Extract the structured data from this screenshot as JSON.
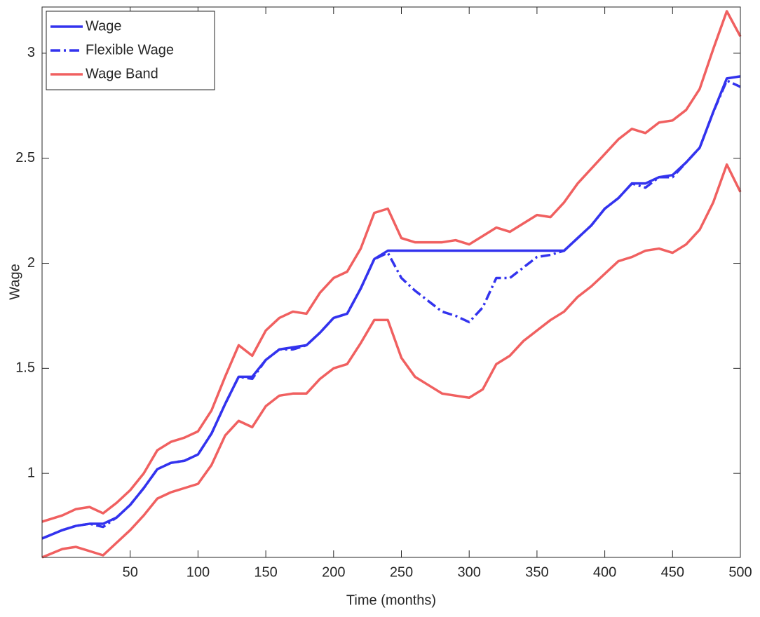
{
  "chart_data": {
    "type": "line",
    "x_label": "Time (months)",
    "y_label": "Wage",
    "x": [
      -15,
      0,
      10,
      20,
      30,
      40,
      50,
      60,
      70,
      80,
      90,
      100,
      110,
      120,
      130,
      140,
      150,
      160,
      170,
      180,
      190,
      200,
      210,
      220,
      230,
      240,
      250,
      260,
      270,
      280,
      290,
      300,
      310,
      320,
      330,
      340,
      350,
      360,
      370,
      380,
      390,
      400,
      410,
      420,
      430,
      440,
      450,
      460,
      470,
      480,
      490,
      500
    ],
    "series": [
      {
        "name": "Wage",
        "color": "#3333ee",
        "dash": "solid",
        "values": [
          0.69,
          0.73,
          0.75,
          0.76,
          0.76,
          0.79,
          0.85,
          0.93,
          1.02,
          1.05,
          1.06,
          1.09,
          1.19,
          1.33,
          1.46,
          1.46,
          1.54,
          1.59,
          1.6,
          1.61,
          1.67,
          1.74,
          1.76,
          1.88,
          2.02,
          2.06,
          2.06,
          2.06,
          2.06,
          2.06,
          2.06,
          2.06,
          2.06,
          2.06,
          2.06,
          2.06,
          2.06,
          2.06,
          2.06,
          2.12,
          2.18,
          2.26,
          2.31,
          2.38,
          2.38,
          2.41,
          2.42,
          2.48,
          2.55,
          2.72,
          2.88,
          2.89
        ]
      },
      {
        "name": "Flexible Wage",
        "color": "#3333ee",
        "dash": "dash-dot",
        "values": [
          0.69,
          0.73,
          0.75,
          0.76,
          0.745,
          0.79,
          0.85,
          0.93,
          1.02,
          1.05,
          1.06,
          1.09,
          1.19,
          1.33,
          1.46,
          1.45,
          1.54,
          1.59,
          1.59,
          1.61,
          1.67,
          1.74,
          1.76,
          1.88,
          2.02,
          2.05,
          1.93,
          1.87,
          1.82,
          1.77,
          1.75,
          1.72,
          1.79,
          1.93,
          1.93,
          1.98,
          2.03,
          2.04,
          2.06,
          2.12,
          2.18,
          2.26,
          2.31,
          2.38,
          2.36,
          2.41,
          2.41,
          2.48,
          2.55,
          2.72,
          2.87,
          2.84
        ]
      },
      {
        "name": "Wage Band",
        "color": "#f06060",
        "dash": "solid",
        "values": [
          0.77,
          0.8,
          0.83,
          0.84,
          0.81,
          0.86,
          0.92,
          1.0,
          1.11,
          1.15,
          1.17,
          1.2,
          1.3,
          1.46,
          1.61,
          1.56,
          1.68,
          1.74,
          1.77,
          1.76,
          1.86,
          1.93,
          1.96,
          2.07,
          2.24,
          2.26,
          2.12,
          2.1,
          2.1,
          2.1,
          2.11,
          2.09,
          2.13,
          2.17,
          2.15,
          2.19,
          2.23,
          2.22,
          2.29,
          2.38,
          2.45,
          2.52,
          2.59,
          2.64,
          2.62,
          2.67,
          2.68,
          2.73,
          2.83,
          3.02,
          3.2,
          3.08
        ]
      },
      {
        "color": "#f06060",
        "dash": "solid",
        "values": [
          0.6,
          0.64,
          0.65,
          0.63,
          0.61,
          0.67,
          0.73,
          0.8,
          0.88,
          0.91,
          0.93,
          0.95,
          1.04,
          1.18,
          1.25,
          1.22,
          1.32,
          1.37,
          1.38,
          1.38,
          1.45,
          1.5,
          1.52,
          1.62,
          1.73,
          1.73,
          1.55,
          1.46,
          1.42,
          1.38,
          1.37,
          1.36,
          1.4,
          1.52,
          1.56,
          1.63,
          1.68,
          1.73,
          1.77,
          1.84,
          1.89,
          1.95,
          2.01,
          2.03,
          2.06,
          2.07,
          2.05,
          2.09,
          2.16,
          2.29,
          2.47,
          2.34
        ]
      }
    ],
    "xlim": [
      -15,
      500
    ],
    "xticks": [
      50,
      100,
      150,
      200,
      250,
      300,
      350,
      400,
      450,
      500
    ],
    "ylim": [
      0.6,
      3.22
    ],
    "yticks": [
      1,
      1.5,
      2,
      2.5,
      3
    ],
    "legend": "upper left",
    "grid": false
  }
}
